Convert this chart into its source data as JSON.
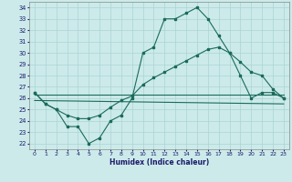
{
  "title": "",
  "xlabel": "Humidex (Indice chaleur)",
  "xlim": [
    -0.5,
    23.5
  ],
  "ylim": [
    21.5,
    34.5
  ],
  "yticks": [
    22,
    23,
    24,
    25,
    26,
    27,
    28,
    29,
    30,
    31,
    32,
    33,
    34
  ],
  "xticks": [
    0,
    1,
    2,
    3,
    4,
    5,
    6,
    7,
    8,
    9,
    10,
    11,
    12,
    13,
    14,
    15,
    16,
    17,
    18,
    19,
    20,
    21,
    22,
    23
  ],
  "bg_color": "#cceaea",
  "line_color": "#1a6b5a",
  "grid_color": "#aad4d4",
  "line1_x": [
    0,
    1,
    2,
    3,
    4,
    5,
    6,
    7,
    8,
    9,
    10,
    11,
    12,
    13,
    14,
    15,
    16,
    17,
    18,
    19,
    20,
    21,
    22,
    23
  ],
  "line1_y": [
    26.5,
    25.5,
    25.0,
    23.5,
    23.5,
    22.0,
    22.5,
    24.0,
    24.5,
    26.0,
    30.0,
    30.5,
    33.0,
    33.0,
    33.5,
    34.0,
    33.0,
    31.5,
    30.0,
    28.0,
    26.0,
    26.5,
    26.5,
    26.0
  ],
  "line2_x": [
    0,
    1,
    2,
    3,
    4,
    5,
    6,
    7,
    8,
    9,
    10,
    11,
    12,
    13,
    14,
    15,
    16,
    17,
    18,
    19,
    20,
    21,
    22,
    23
  ],
  "line2_y": [
    26.5,
    25.5,
    25.0,
    24.5,
    24.2,
    24.2,
    24.5,
    25.2,
    25.8,
    26.2,
    27.2,
    27.8,
    28.3,
    28.8,
    29.3,
    29.8,
    30.3,
    30.5,
    30.0,
    29.2,
    28.3,
    28.0,
    26.8,
    26.0
  ],
  "line3_x": [
    0,
    23
  ],
  "line3_y": [
    26.3,
    26.3
  ],
  "line4_x": [
    0,
    23
  ],
  "line4_y": [
    25.8,
    25.5
  ]
}
